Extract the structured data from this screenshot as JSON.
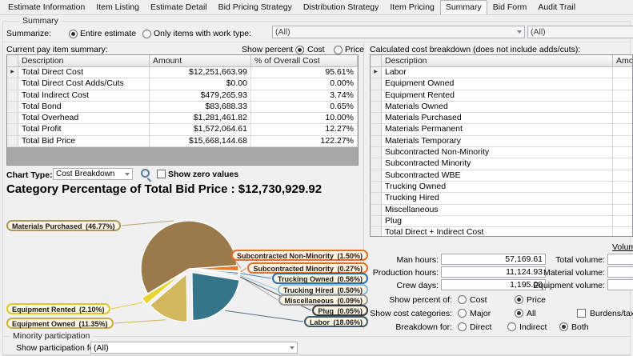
{
  "tabs": [
    "Estimate Information",
    "Item Listing",
    "Estimate Detail",
    "Bid Pricing Strategy",
    "Distribution Strategy",
    "Item Pricing",
    "Summary",
    "Bid Form",
    "Audit Trail"
  ],
  "active_tab": "Summary",
  "summary_group": {
    "label": "Summary"
  },
  "summarize": {
    "label": "Summarize:",
    "options": [
      "Entire estimate",
      "Only items with work type:"
    ],
    "selected": "Entire estimate",
    "work_type_dropdown": "(All)",
    "second_dropdown": "(All)"
  },
  "pay_item_summary": {
    "header_label": "Current pay item summary:",
    "show_percent": {
      "label": "Show percent of:",
      "options": [
        "Cost",
        "Price"
      ],
      "selected": "Cost"
    },
    "columns": [
      "Description",
      "Amount",
      "% of Overall Cost"
    ],
    "rows": [
      {
        "description": "Total Direct Cost",
        "amount": "$12,251,663.99",
        "percent": "95.61%"
      },
      {
        "description": "Total Direct Cost Adds/Cuts",
        "amount": "$0.00",
        "percent": "0.00%"
      },
      {
        "description": "Total Indirect Cost",
        "amount": "$479,265.93",
        "percent": "3.74%"
      },
      {
        "description": "Total Bond",
        "amount": "$83,688.33",
        "percent": "0.65%"
      },
      {
        "description": "Total Overhead",
        "amount": "$1,281,461.82",
        "percent": "10.00%"
      },
      {
        "description": "Total Profit",
        "amount": "$1,572,064.61",
        "percent": "12.27%"
      },
      {
        "description": "Total Bid Price",
        "amount": "$15,668,144.68",
        "percent": "122.27%"
      }
    ]
  },
  "cost_breakdown": {
    "header_label": "Calculated cost breakdown (does not include adds/cuts):",
    "columns": [
      "Description",
      "Amount"
    ],
    "rows": [
      "Labor",
      "Equipment Owned",
      "Equipment Rented",
      "Materials Owned",
      "Materials Purchased",
      "Materials Permanent",
      "Materials Temporary",
      "Subcontracted Non-Minority",
      "Subcontracted Minority",
      "Subcontracted WBE",
      "Trucking Owned",
      "Trucking Hired",
      "Miscellaneous",
      "Plug",
      "Total Direct + Indirect Cost"
    ]
  },
  "chart_controls": {
    "type_label": "Chart Type:",
    "type_value": "Cost Breakdown",
    "show_zero_label": "Show zero values",
    "show_zero_checked": false
  },
  "chart_title": "Category Percentage of Total Bid Price : $12,730,929.92",
  "chart_data": {
    "type": "pie",
    "title": "Category Percentage of Total Bid Price : $12,730,929.92",
    "total_value": "$12,730,929.92",
    "percent_basis": "Total Bid Price",
    "label_fill": "#fcf5e3",
    "slices": [
      {
        "label": "Subcontracted Non-Minority",
        "pct": 1.5,
        "color": "#e87c2a",
        "border": "#e2702a",
        "side": "right"
      },
      {
        "label": "Subcontracted Minority",
        "pct": 0.27,
        "color": "#e87c2a",
        "border": "#e2702a",
        "side": "right"
      },
      {
        "label": "Trucking Owned",
        "pct": 0.56,
        "color": "#2b6fad",
        "border": "#2b6fad",
        "side": "right"
      },
      {
        "label": "Trucking Hired",
        "pct": 0.5,
        "color": "#8ab8d6",
        "border": "#8ab8d6",
        "side": "right"
      },
      {
        "label": "Miscellaneous",
        "pct": 0.09,
        "color": "#9e9e9e",
        "border": "#9a9a9a",
        "side": "right"
      },
      {
        "label": "Plug",
        "pct": 0.05,
        "color": "#3f4447",
        "border": "#363c40",
        "side": "right"
      },
      {
        "label": "Labor",
        "pct": 18.06,
        "color": "#34758a",
        "border": "#3d5a6e",
        "side": "right"
      },
      {
        "label": "Equipment Owned",
        "pct": 11.35,
        "color": "#d3b75f",
        "border": "#c9ac45",
        "side": "left"
      },
      {
        "label": "Equipment Rented",
        "pct": 2.1,
        "color": "#e9d42f",
        "border": "#ddc72e",
        "side": "left"
      },
      {
        "label": "Materials Purchased",
        "pct": 46.77,
        "color": "#9a7a4b",
        "border": "#ad9760",
        "side": "left"
      }
    ]
  },
  "hours": {
    "rows": [
      {
        "label": "Man hours:",
        "value": "57,169.61"
      },
      {
        "label": "Production hours:",
        "value": "11,124.93"
      },
      {
        "label": "Crew days:",
        "value": "1,195.00"
      }
    ]
  },
  "volume": {
    "header": "Volume",
    "rows": [
      {
        "label": "Total volume:",
        "value": ""
      },
      {
        "label": "Material volume:",
        "value": ""
      },
      {
        "label": "Equipment volume:",
        "value": ""
      }
    ]
  },
  "options": {
    "show_percent_of": {
      "label": "Show percent of:",
      "options": [
        "Cost",
        "Price"
      ],
      "selected": "Price"
    },
    "show_cost_categories": {
      "label": "Show cost categories:",
      "options": [
        "Major",
        "All"
      ],
      "selected": "All",
      "checkbox": {
        "label": "Burdens/taxes separate",
        "checked": false
      }
    },
    "breakdown_for": {
      "label": "Breakdown for:",
      "options": [
        "Direct",
        "Indirect",
        "Both"
      ],
      "selected": "Both"
    }
  },
  "minority": {
    "group_label": "Minority participation",
    "field_label": "Show participation for:",
    "value": "(All)"
  }
}
